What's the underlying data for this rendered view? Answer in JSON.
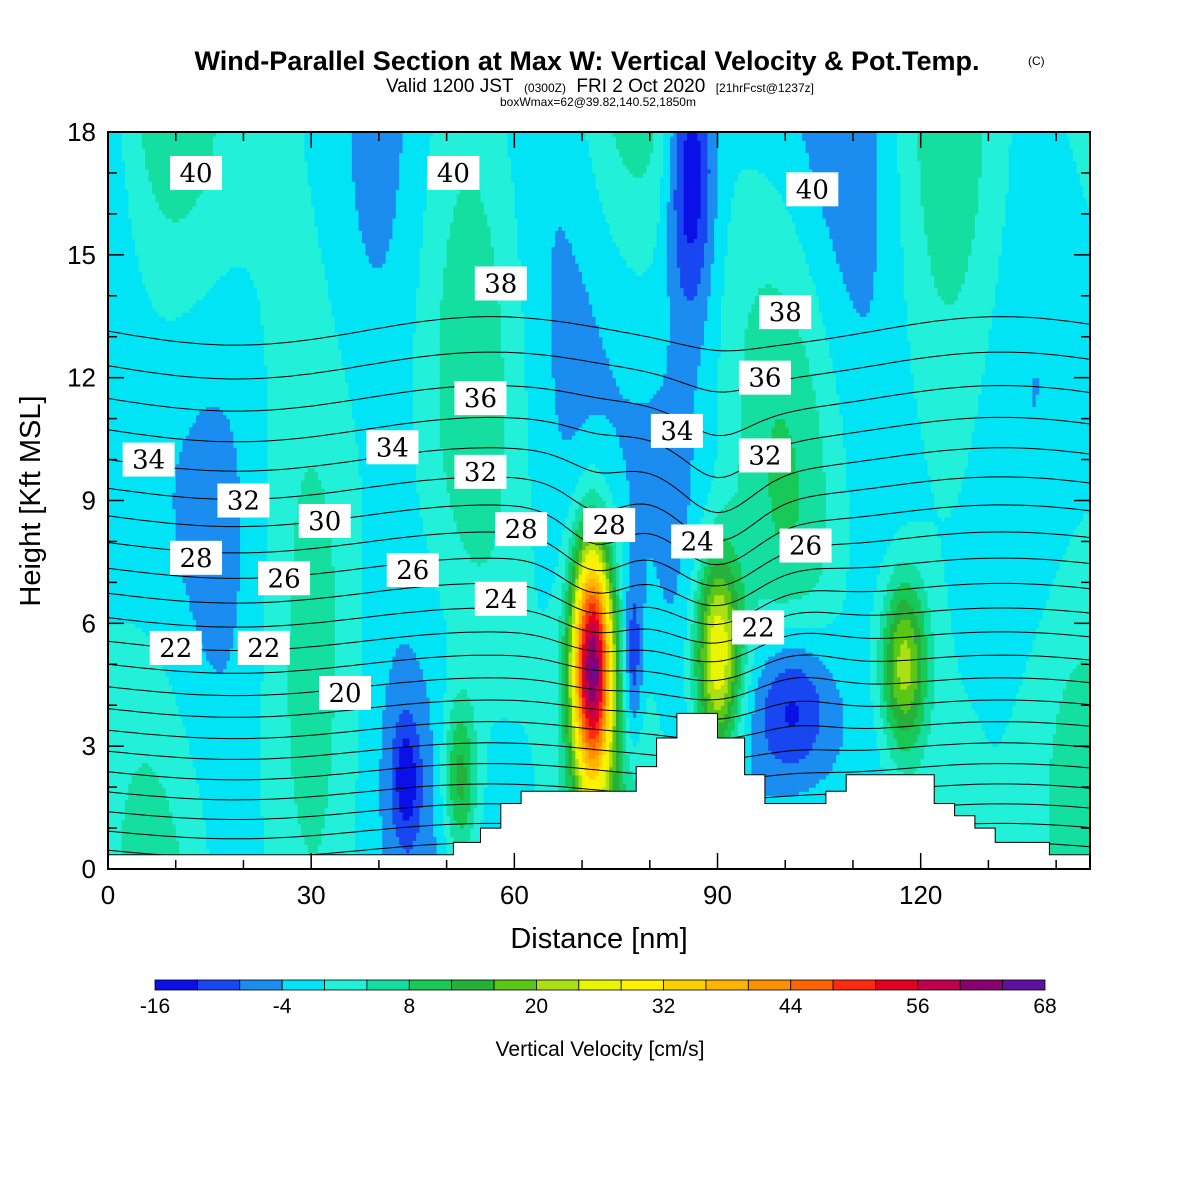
{
  "title": {
    "line1": "Wind-Parallel Section at Max W: Vertical Velocity & Pot.Temp.",
    "line1_mark": "(C)",
    "line2_a": "Valid 1200 JST",
    "line2_b": "(0300Z)",
    "line2_c": "FRI 2 Oct 2020",
    "line2_d": "[21hrFcst@1237z]",
    "line3": "boxWmax=62@39.82,140.52,1850m"
  },
  "chart_data": {
    "type": "heatmap",
    "xlabel": "Distance [nm]",
    "ylabel": "Height [Kft MSL]",
    "xlim": [
      0,
      145
    ],
    "ylim": [
      0,
      18
    ],
    "x_ticks": [
      0,
      30,
      60,
      90,
      120
    ],
    "x_minor_ticks": [
      10,
      20,
      40,
      50,
      70,
      80,
      100,
      110,
      130,
      140
    ],
    "y_ticks": [
      0,
      3,
      6,
      9,
      12,
      15,
      18
    ],
    "grid": false,
    "colorbar": {
      "title": "Vertical Velocity [cm/s]",
      "boundaries": [
        -16,
        -12,
        -8,
        -4,
        0,
        4,
        8,
        12,
        16,
        20,
        24,
        28,
        32,
        36,
        40,
        44,
        48,
        52,
        56,
        60,
        64,
        68
      ],
      "tick_labels": [
        "-16",
        "-4",
        "8",
        "20",
        "32",
        "44",
        "56",
        "68"
      ],
      "colors": [
        "#0a10e6",
        "#1846f0",
        "#1b8cf0",
        "#00e4f5",
        "#22f0d8",
        "#14dea0",
        "#17c956",
        "#26b23a",
        "#5ac716",
        "#abe014",
        "#eaf500",
        "#fff200",
        "#ffd000",
        "#ffb400",
        "#ff9000",
        "#ff6400",
        "#ff2a10",
        "#e40020",
        "#c0004a",
        "#8a0070",
        "#5e10a0"
      ]
    },
    "theta_contours": {
      "levels": [
        20,
        22,
        24,
        26,
        28,
        30,
        32,
        34,
        36,
        38,
        40
      ],
      "labels": [
        {
          "text": "40",
          "x": 13,
          "y": 17.0
        },
        {
          "text": "40",
          "x": 51,
          "y": 17.0
        },
        {
          "text": "40",
          "x": 104,
          "y": 16.6
        },
        {
          "text": "38",
          "x": 58,
          "y": 14.3
        },
        {
          "text": "38",
          "x": 100,
          "y": 13.6
        },
        {
          "text": "36",
          "x": 55,
          "y": 11.5
        },
        {
          "text": "36",
          "x": 97,
          "y": 12.0
        },
        {
          "text": "34",
          "x": 6,
          "y": 10.0
        },
        {
          "text": "34",
          "x": 42,
          "y": 10.3
        },
        {
          "text": "34",
          "x": 84,
          "y": 10.7
        },
        {
          "text": "32",
          "x": 20,
          "y": 9.0
        },
        {
          "text": "32",
          "x": 55,
          "y": 9.7
        },
        {
          "text": "32",
          "x": 97,
          "y": 10.1
        },
        {
          "text": "30",
          "x": 32,
          "y": 8.5
        },
        {
          "text": "28",
          "x": 13,
          "y": 7.6
        },
        {
          "text": "28",
          "x": 61,
          "y": 8.3
        },
        {
          "text": "28",
          "x": 74,
          "y": 8.4
        },
        {
          "text": "26",
          "x": 26,
          "y": 7.1
        },
        {
          "text": "26",
          "x": 45,
          "y": 7.3
        },
        {
          "text": "26",
          "x": 103,
          "y": 7.9
        },
        {
          "text": "24",
          "x": 58,
          "y": 6.6
        },
        {
          "text": "24",
          "x": 87,
          "y": 8.0
        },
        {
          "text": "22",
          "x": 10,
          "y": 5.4
        },
        {
          "text": "22",
          "x": 23,
          "y": 5.4
        },
        {
          "text": "22",
          "x": 96,
          "y": 5.9
        },
        {
          "text": "20",
          "x": 35,
          "y": 4.3
        }
      ]
    },
    "velocity_features": [
      {
        "name": "upward core",
        "x": 71.5,
        "y": 5.0,
        "peak": 62,
        "x_half_width": 3.0,
        "y_half_height": 3.0
      },
      {
        "name": "upward core",
        "x": 90,
        "y": 5.2,
        "peak": 32,
        "x_half_width": 3.5,
        "y_half_height": 2.6
      },
      {
        "name": "upward core",
        "x": 117.5,
        "y": 5.0,
        "peak": 24,
        "x_half_width": 3.5,
        "y_half_height": 2.2
      },
      {
        "name": "upward core",
        "x": 52,
        "y": 2.2,
        "peak": 16,
        "x_half_width": 2.5,
        "y_half_height": 2.0
      },
      {
        "name": "downward core",
        "x": 101,
        "y": 4.0,
        "peak": -16,
        "x_half_width": 6.0,
        "y_half_height": 2.0
      },
      {
        "name": "downward core",
        "x": 77.5,
        "y": 5.0,
        "peak": -12,
        "x_half_width": 1.5,
        "y_half_height": 2.2
      },
      {
        "name": "downward core",
        "x": 44,
        "y": 2.2,
        "peak": -10,
        "x_half_width": 2.0,
        "y_half_height": 1.5
      },
      {
        "name": "downward core",
        "x": 86,
        "y": 17.0,
        "peak": -16,
        "x_half_width": 3.5,
        "y_half_height": 3.5
      }
    ],
    "terrain_profile": [
      {
        "x": 0,
        "h": 0.35
      },
      {
        "x": 51,
        "h": 0.35
      },
      {
        "x": 51,
        "h": 0.65
      },
      {
        "x": 55,
        "h": 0.65
      },
      {
        "x": 55,
        "h": 1.0
      },
      {
        "x": 58,
        "h": 1.0
      },
      {
        "x": 58,
        "h": 1.6
      },
      {
        "x": 61,
        "h": 1.6
      },
      {
        "x": 61,
        "h": 1.9
      },
      {
        "x": 78,
        "h": 1.9
      },
      {
        "x": 78,
        "h": 2.5
      },
      {
        "x": 81,
        "h": 2.5
      },
      {
        "x": 81,
        "h": 3.2
      },
      {
        "x": 84,
        "h": 3.2
      },
      {
        "x": 84,
        "h": 3.8
      },
      {
        "x": 90,
        "h": 3.8
      },
      {
        "x": 90,
        "h": 3.2
      },
      {
        "x": 94,
        "h": 3.2
      },
      {
        "x": 94,
        "h": 2.3
      },
      {
        "x": 97,
        "h": 2.3
      },
      {
        "x": 97,
        "h": 1.6
      },
      {
        "x": 106,
        "h": 1.6
      },
      {
        "x": 106,
        "h": 1.9
      },
      {
        "x": 109,
        "h": 1.9
      },
      {
        "x": 109,
        "h": 2.3
      },
      {
        "x": 122,
        "h": 2.3
      },
      {
        "x": 122,
        "h": 1.6
      },
      {
        "x": 125,
        "h": 1.6
      },
      {
        "x": 125,
        "h": 1.3
      },
      {
        "x": 128,
        "h": 1.3
      },
      {
        "x": 128,
        "h": 1.0
      },
      {
        "x": 131,
        "h": 1.0
      },
      {
        "x": 131,
        "h": 0.65
      },
      {
        "x": 139,
        "h": 0.65
      },
      {
        "x": 139,
        "h": 0.35
      },
      {
        "x": 145,
        "h": 0.35
      }
    ]
  }
}
